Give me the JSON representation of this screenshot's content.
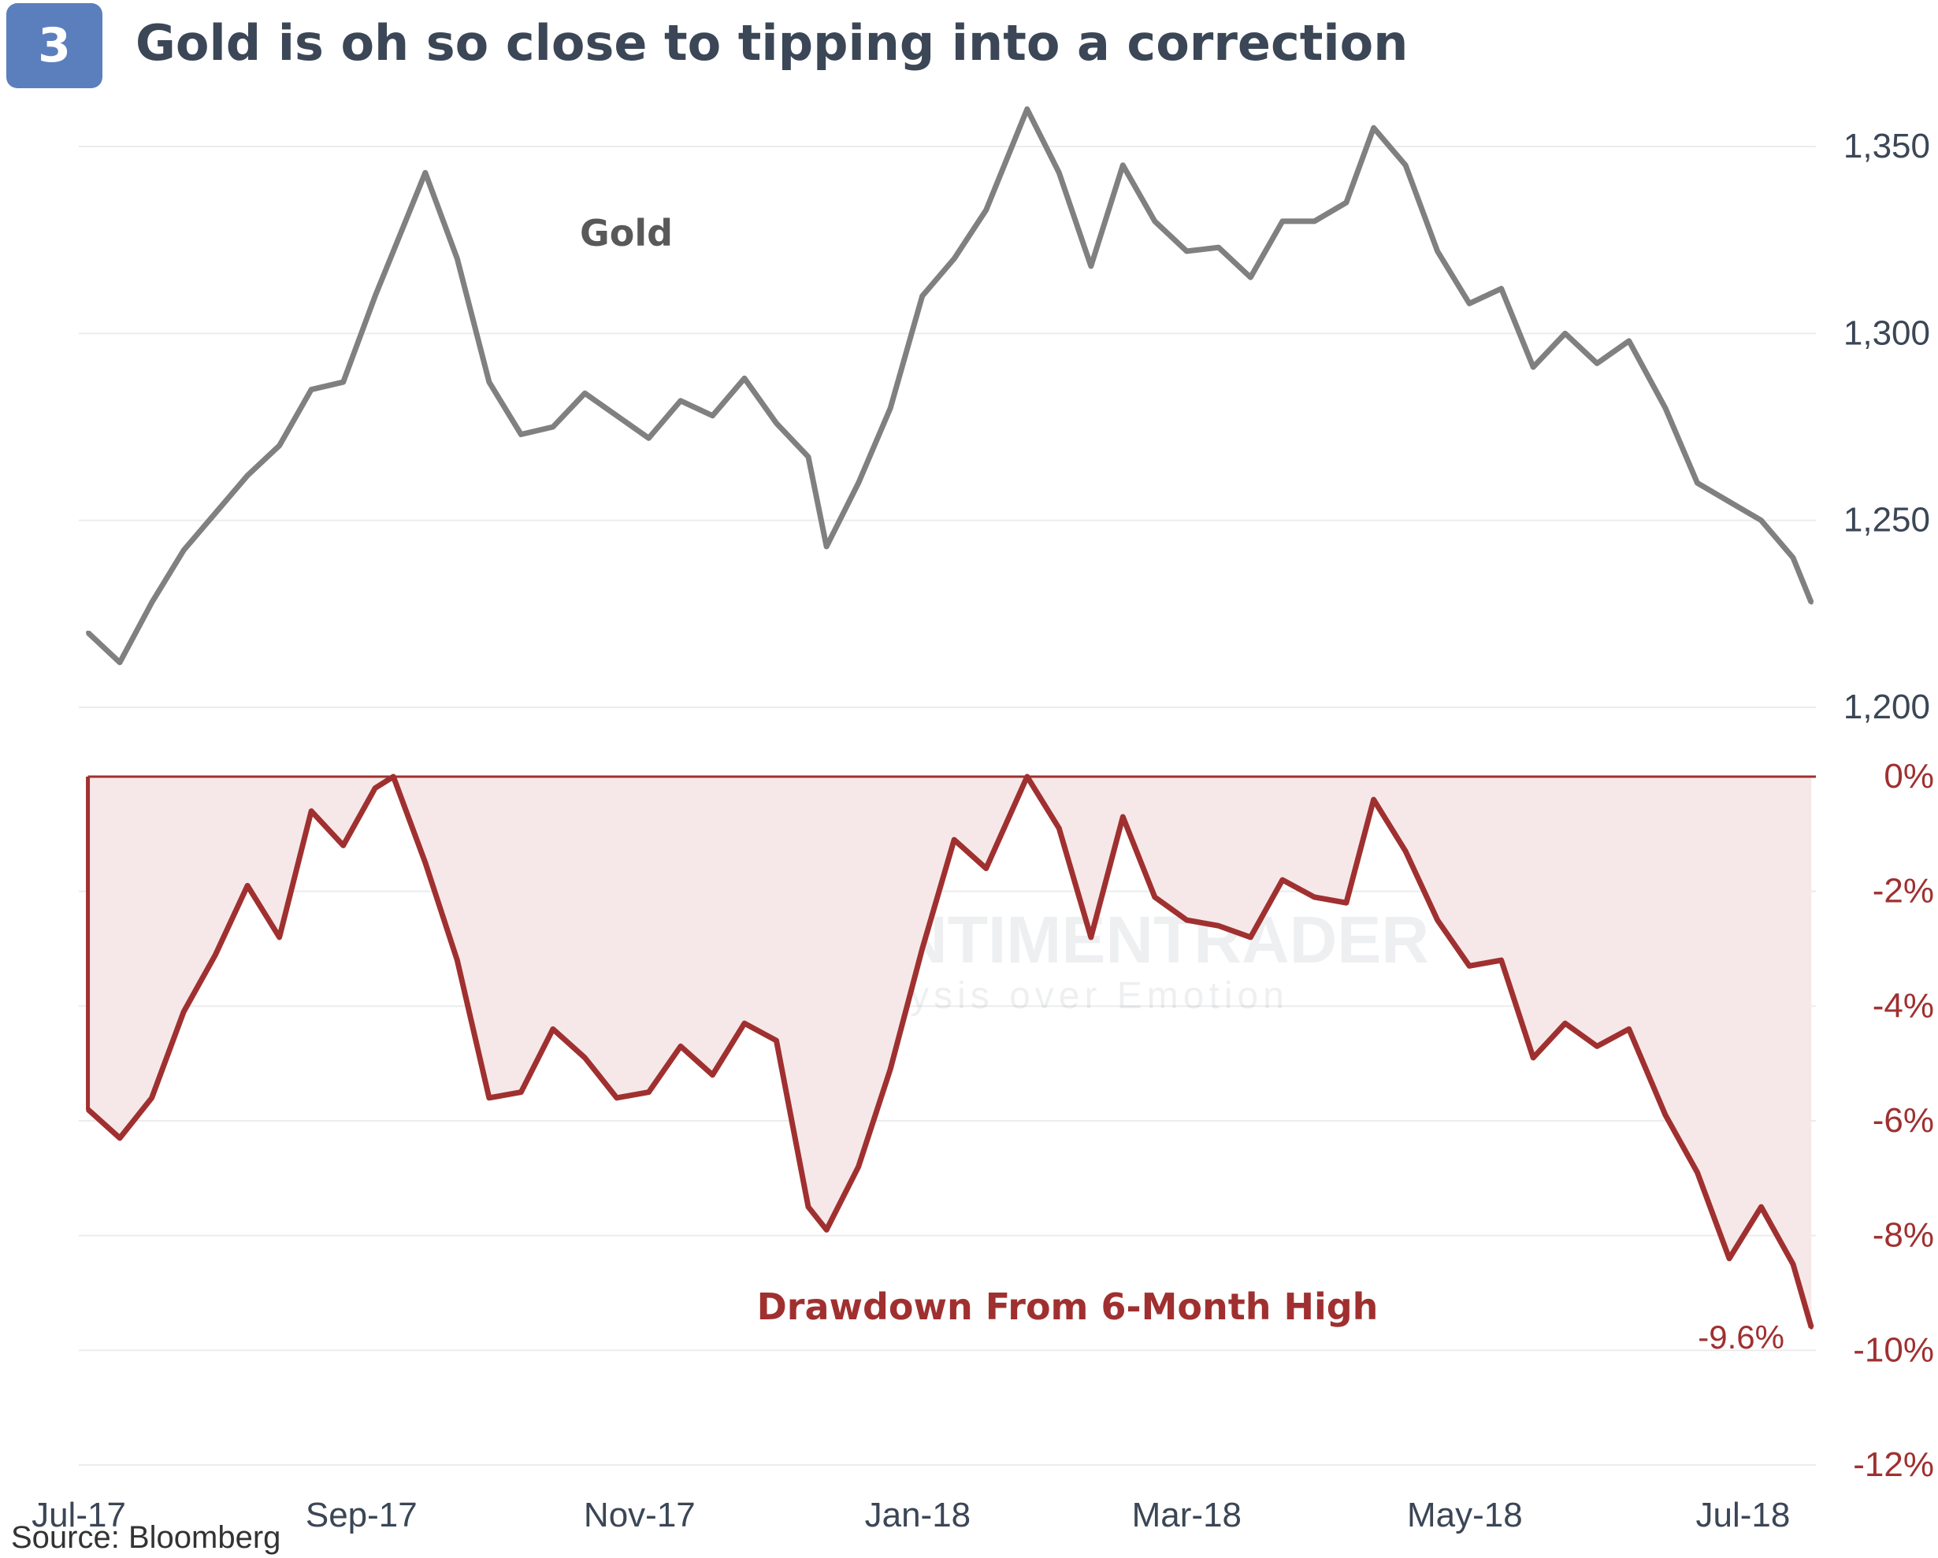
{
  "header": {
    "badge": "3",
    "title": "Gold is oh so close to tipping into a correction"
  },
  "source": "Source: Bloomberg",
  "watermark": {
    "name": "SENTIMENTRADER",
    "tagline": "Analysis over Emotion"
  },
  "colors": {
    "gold_line": "#808080",
    "drawdown_line": "#a03030",
    "drawdown_fill": "#f6e8e8",
    "badge": "#5b7fbd",
    "title": "#3b4656",
    "grid": "#ececec"
  },
  "chart_data": [
    {
      "type": "line",
      "series": [
        {
          "name": "Gold"
        }
      ],
      "x_tick_labels": [
        "Jul-17",
        "Sep-17",
        "Nov-17",
        "Jan-18",
        "Mar-18",
        "May-18",
        "Jul-18"
      ],
      "y_tick_labels": [
        "1,350",
        "1,300",
        "1,250",
        "1,200"
      ],
      "ylim": [
        1200,
        1350
      ],
      "grid": true,
      "x": [
        "2017-07-03",
        "2017-07-10",
        "2017-07-17",
        "2017-07-24",
        "2017-07-31",
        "2017-08-07",
        "2017-08-14",
        "2017-08-21",
        "2017-08-28",
        "2017-09-04",
        "2017-09-08",
        "2017-09-15",
        "2017-09-22",
        "2017-09-29",
        "2017-10-06",
        "2017-10-13",
        "2017-10-20",
        "2017-10-27",
        "2017-11-03",
        "2017-11-10",
        "2017-11-17",
        "2017-11-24",
        "2017-12-01",
        "2017-12-08",
        "2017-12-12",
        "2017-12-19",
        "2017-12-26",
        "2018-01-02",
        "2018-01-09",
        "2018-01-16",
        "2018-01-25",
        "2018-02-01",
        "2018-02-08",
        "2018-02-15",
        "2018-02-22",
        "2018-03-01",
        "2018-03-08",
        "2018-03-15",
        "2018-03-22",
        "2018-03-29",
        "2018-04-05",
        "2018-04-11",
        "2018-04-18",
        "2018-04-25",
        "2018-05-02",
        "2018-05-09",
        "2018-05-16",
        "2018-05-23",
        "2018-05-30",
        "2018-06-06",
        "2018-06-14",
        "2018-06-21",
        "2018-06-28",
        "2018-07-05",
        "2018-07-12",
        "2018-07-16"
      ],
      "values": [
        1220,
        1212,
        1228,
        1242,
        1252,
        1262,
        1270,
        1285,
        1287,
        1310,
        1322,
        1343,
        1320,
        1287,
        1273,
        1275,
        1284,
        1278,
        1272,
        1282,
        1278,
        1288,
        1276,
        1267,
        1243,
        1260,
        1280,
        1310,
        1320,
        1333,
        1360,
        1343,
        1318,
        1345,
        1330,
        1322,
        1323,
        1315,
        1330,
        1330,
        1335,
        1355,
        1345,
        1322,
        1308,
        1312,
        1291,
        1300,
        1292,
        1298,
        1280,
        1260,
        1255,
        1250,
        1240,
        1228
      ]
    },
    {
      "type": "area",
      "series": [
        {
          "name": "Drawdown From 6-Month High"
        }
      ],
      "x_tick_labels": [
        "Jul-17",
        "Sep-17",
        "Nov-17",
        "Jan-18",
        "Mar-18",
        "May-18",
        "Jul-18"
      ],
      "y_tick_labels": [
        "0%",
        "-2%",
        "-4%",
        "-6%",
        "-8%",
        "-10%",
        "-12%"
      ],
      "ylim": [
        -12,
        0
      ],
      "grid": true,
      "end_label": "-9.6%",
      "x": [
        "2017-07-03",
        "2017-07-10",
        "2017-07-17",
        "2017-07-24",
        "2017-07-31",
        "2017-08-07",
        "2017-08-14",
        "2017-08-21",
        "2017-08-28",
        "2017-09-04",
        "2017-09-08",
        "2017-09-15",
        "2017-09-22",
        "2017-09-29",
        "2017-10-06",
        "2017-10-13",
        "2017-10-20",
        "2017-10-27",
        "2017-11-03",
        "2017-11-10",
        "2017-11-17",
        "2017-11-24",
        "2017-12-01",
        "2017-12-08",
        "2017-12-12",
        "2017-12-19",
        "2017-12-26",
        "2018-01-02",
        "2018-01-09",
        "2018-01-16",
        "2018-01-25",
        "2018-02-01",
        "2018-02-08",
        "2018-02-15",
        "2018-02-22",
        "2018-03-01",
        "2018-03-08",
        "2018-03-15",
        "2018-03-22",
        "2018-03-29",
        "2018-04-05",
        "2018-04-11",
        "2018-04-18",
        "2018-04-25",
        "2018-05-02",
        "2018-05-09",
        "2018-05-16",
        "2018-05-23",
        "2018-05-30",
        "2018-06-06",
        "2018-06-14",
        "2018-06-21",
        "2018-06-28",
        "2018-07-05",
        "2018-07-12",
        "2018-07-16"
      ],
      "values": [
        -5.8,
        -6.3,
        -5.6,
        -4.1,
        -3.1,
        -1.9,
        -2.8,
        -0.6,
        -1.2,
        -0.2,
        0,
        -1.5,
        -3.2,
        -5.6,
        -5.5,
        -4.4,
        -4.9,
        -5.6,
        -5.5,
        -4.7,
        -5.2,
        -4.3,
        -4.6,
        -7.5,
        -7.9,
        -6.8,
        -5.1,
        -3.0,
        -1.1,
        -1.6,
        0,
        -0.9,
        -2.8,
        -0.7,
        -2.1,
        -2.5,
        -2.6,
        -2.8,
        -1.8,
        -2.1,
        -2.2,
        -0.4,
        -1.3,
        -2.5,
        -3.3,
        -3.2,
        -4.9,
        -4.3,
        -4.7,
        -4.4,
        -5.9,
        -6.9,
        -8.4,
        -7.5,
        -8.5,
        -9.6
      ]
    }
  ]
}
